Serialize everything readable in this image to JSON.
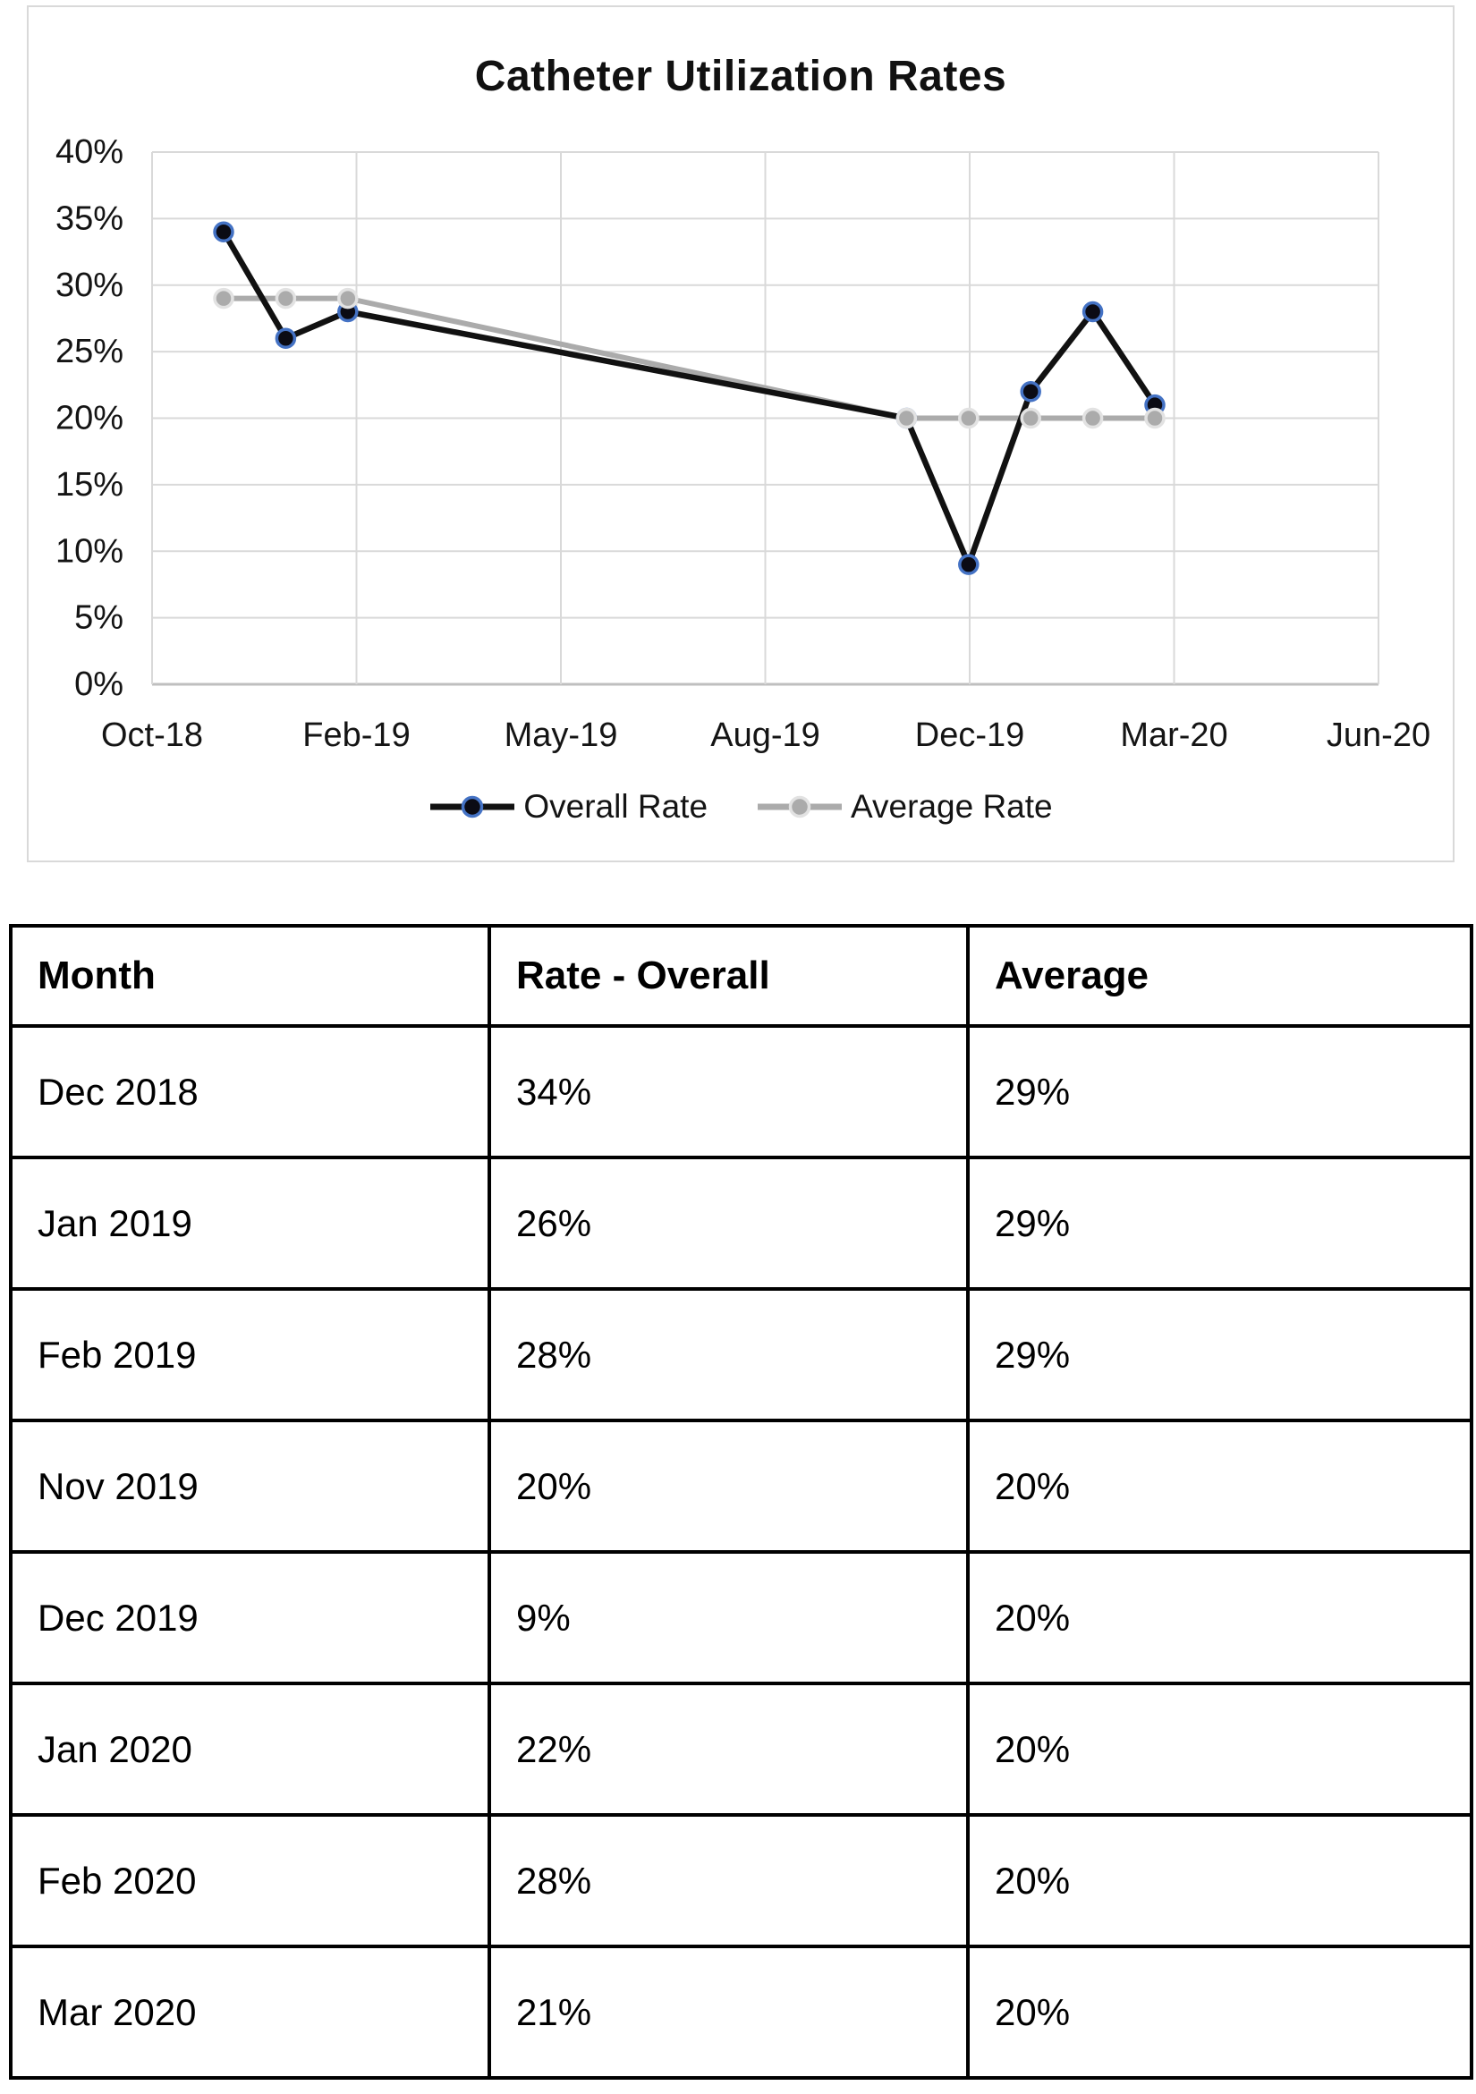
{
  "chart_data": {
    "type": "line",
    "title": "Catheter Utilization Rates",
    "x_tick_labels": [
      "Oct-18",
      "Feb-19",
      "May-19",
      "Aug-19",
      "Dec-19",
      "Mar-20",
      "Jun-20"
    ],
    "y_tick_labels": [
      "0%",
      "5%",
      "10%",
      "15%",
      "20%",
      "25%",
      "30%",
      "35%",
      "40%"
    ],
    "ylim": [
      0,
      40
    ],
    "y_tick_step": 5,
    "grid": true,
    "legend_position": "bottom",
    "categories": [
      "Dec 2018",
      "Jan 2019",
      "Feb 2019",
      "Nov 2019",
      "Dec 2019",
      "Jan 2020",
      "Feb 2020",
      "Mar 2020"
    ],
    "month_offsets_from_oct18": [
      2,
      3,
      4,
      13,
      14,
      15,
      16,
      17
    ],
    "series": [
      {
        "name": "Overall Rate",
        "values": [
          34,
          26,
          28,
          20,
          9,
          22,
          28,
          21
        ],
        "line_color": "#111111",
        "marker_fill": "#0b0b14",
        "marker_stroke": "#4472C4"
      },
      {
        "name": "Average Rate",
        "values": [
          29,
          29,
          29,
          20,
          20,
          20,
          20,
          20
        ],
        "line_color": "#ababab",
        "marker_fill": "#ababab",
        "marker_stroke": "#e2e2e2"
      }
    ]
  },
  "colors": {
    "gridline": "#d9d9d9",
    "axis_line": "#bfbfbf",
    "chart_border": "#d9d9d9",
    "text": "#141414",
    "table_border": "#000000"
  },
  "table": {
    "headers": [
      "Month",
      "Rate - Overall",
      "Average"
    ],
    "rows": [
      [
        "Dec 2018",
        "34%",
        "29%"
      ],
      [
        "Jan 2019",
        "26%",
        "29%"
      ],
      [
        "Feb 2019",
        "28%",
        "29%"
      ],
      [
        "Nov 2019",
        "20%",
        "20%"
      ],
      [
        "Dec 2019",
        "9%",
        "20%"
      ],
      [
        "Jan 2020",
        "22%",
        "20%"
      ],
      [
        "Feb 2020",
        "28%",
        "20%"
      ],
      [
        "Mar 2020",
        "21%",
        "20%"
      ]
    ]
  }
}
